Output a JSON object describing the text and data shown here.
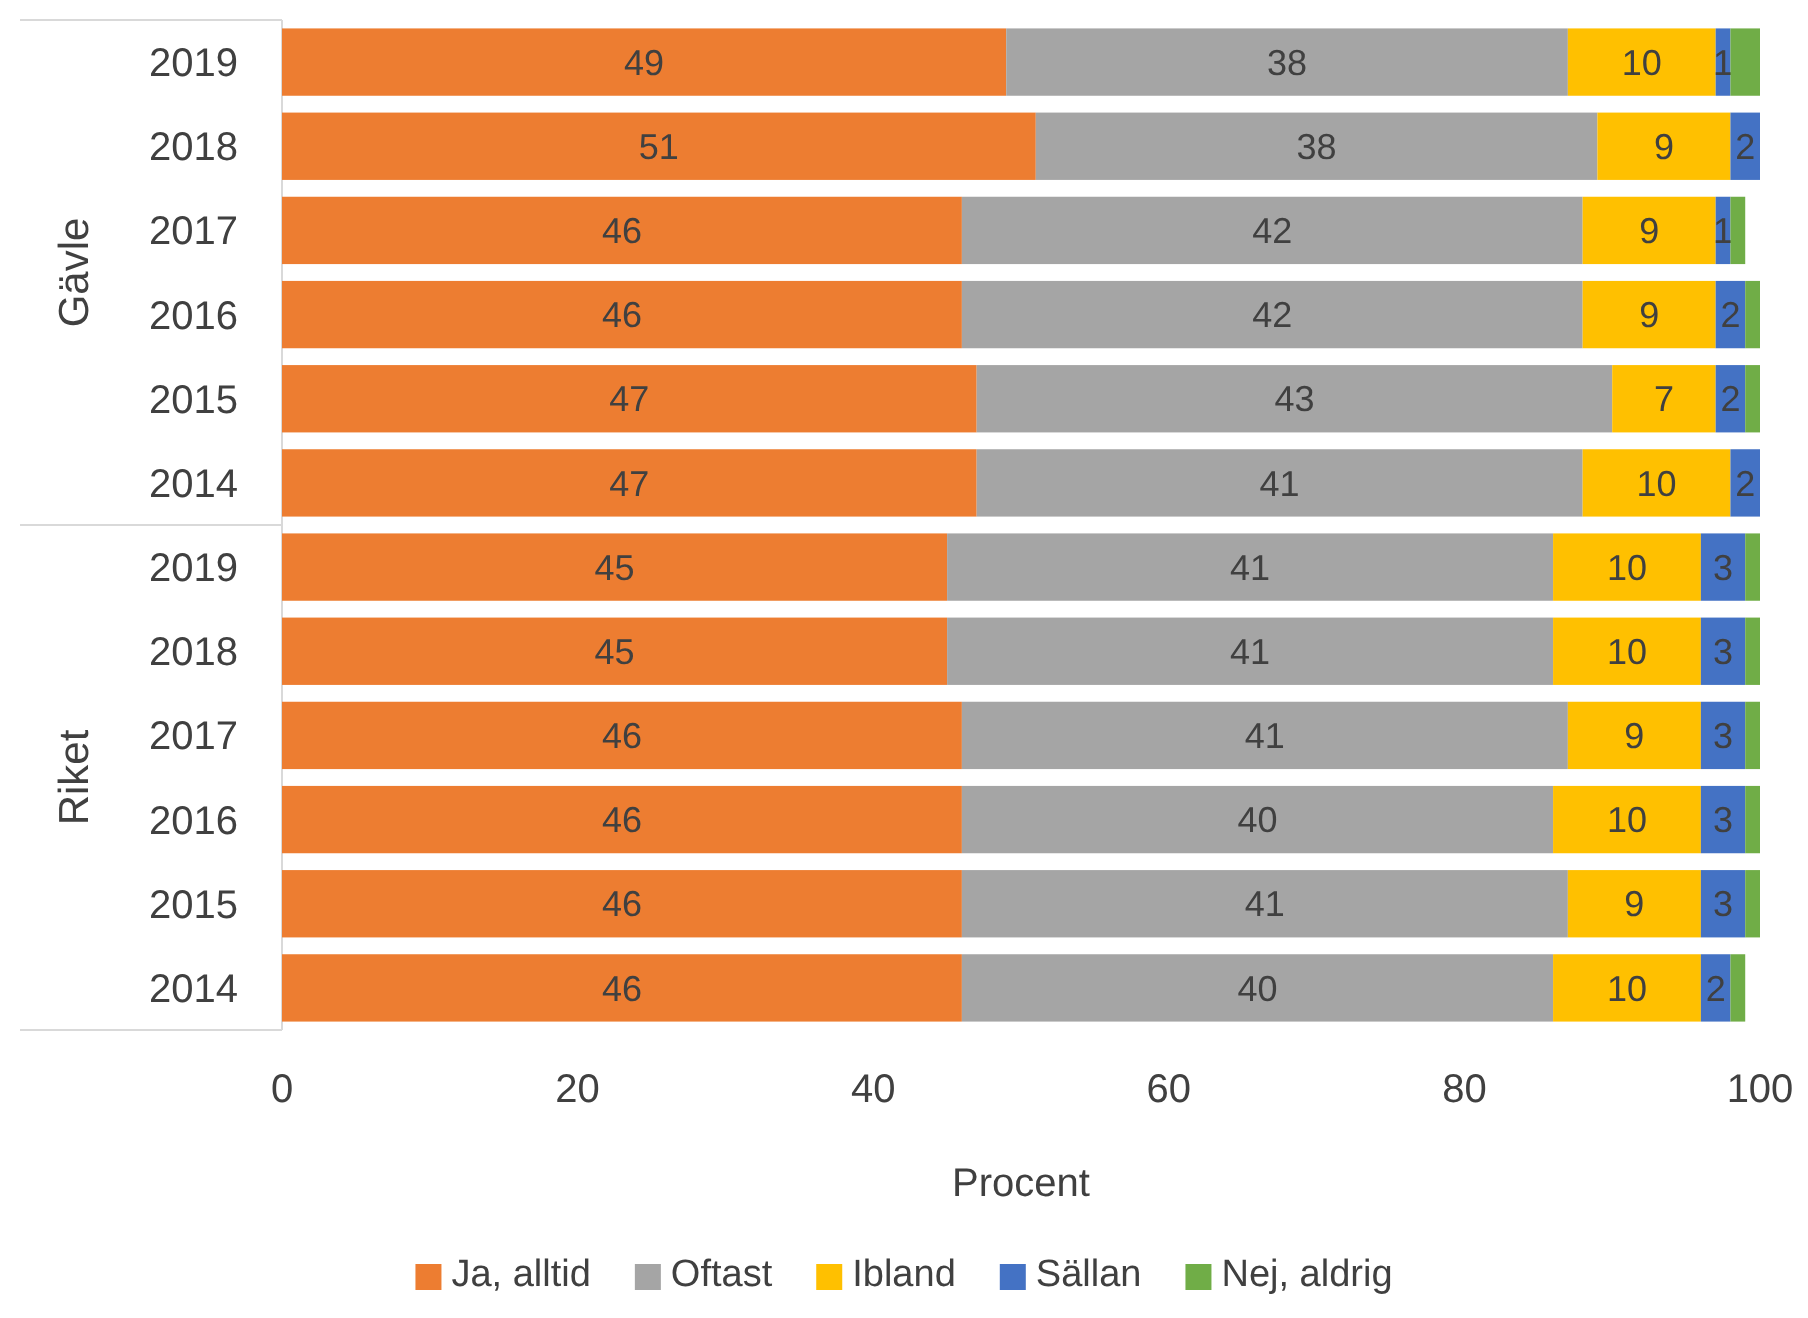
{
  "chart_data": {
    "type": "bar",
    "orientation": "horizontal",
    "stacked": true,
    "xlabel": "Procent",
    "categories": [
      "2019",
      "2018",
      "2017",
      "2016",
      "2015",
      "2014",
      "2019",
      "2018",
      "2017",
      "2016",
      "2015",
      "2014"
    ],
    "annotations": [
      "Gävle",
      "Riket"
    ],
    "series": [
      {
        "name": "Ja, alltid",
        "color": "#ed7d31",
        "values": [
          49,
          51,
          46,
          46,
          47,
          47,
          45,
          45,
          46,
          46,
          46,
          46
        ],
        "value_labels": [
          "49",
          "51",
          "46",
          "46",
          "47",
          "47",
          "45",
          "45",
          "46",
          "46",
          "46",
          "46"
        ]
      },
      {
        "name": "Oftast",
        "color": "#a5a5a5",
        "values": [
          38,
          38,
          42,
          42,
          43,
          41,
          41,
          41,
          41,
          40,
          41,
          40
        ],
        "value_labels": [
          "38",
          "38",
          "42",
          "42",
          "43",
          "41",
          "41",
          "41",
          "41",
          "40",
          "41",
          "40"
        ]
      },
      {
        "name": "Ibland",
        "color": "#ffc000",
        "values": [
          10,
          9,
          9,
          9,
          7,
          10,
          10,
          10,
          9,
          10,
          9,
          10
        ],
        "value_labels": [
          "10",
          "9",
          "9",
          "9",
          "7",
          "10",
          "10",
          "10",
          "9",
          "10",
          "9",
          "10"
        ]
      },
      {
        "name": "Sällan",
        "color": "#4472c4",
        "values": [
          1,
          2,
          1,
          2,
          2,
          2,
          3,
          3,
          3,
          3,
          3,
          2
        ],
        "value_labels": [
          "1",
          "2",
          "1",
          "2",
          "2",
          "2",
          "3",
          "3",
          "3",
          "3",
          "3",
          "2"
        ]
      },
      {
        "name": "Nej, aldrig",
        "color": "#70ad47",
        "values": [
          2,
          0,
          1,
          1,
          1,
          0,
          1,
          1,
          1,
          1,
          1,
          1
        ]
      }
    ],
    "xlim": [
      0,
      100
    ],
    "xticks": [
      0,
      20,
      40,
      60,
      80,
      100
    ],
    "grid": false,
    "legend": "bottom"
  }
}
